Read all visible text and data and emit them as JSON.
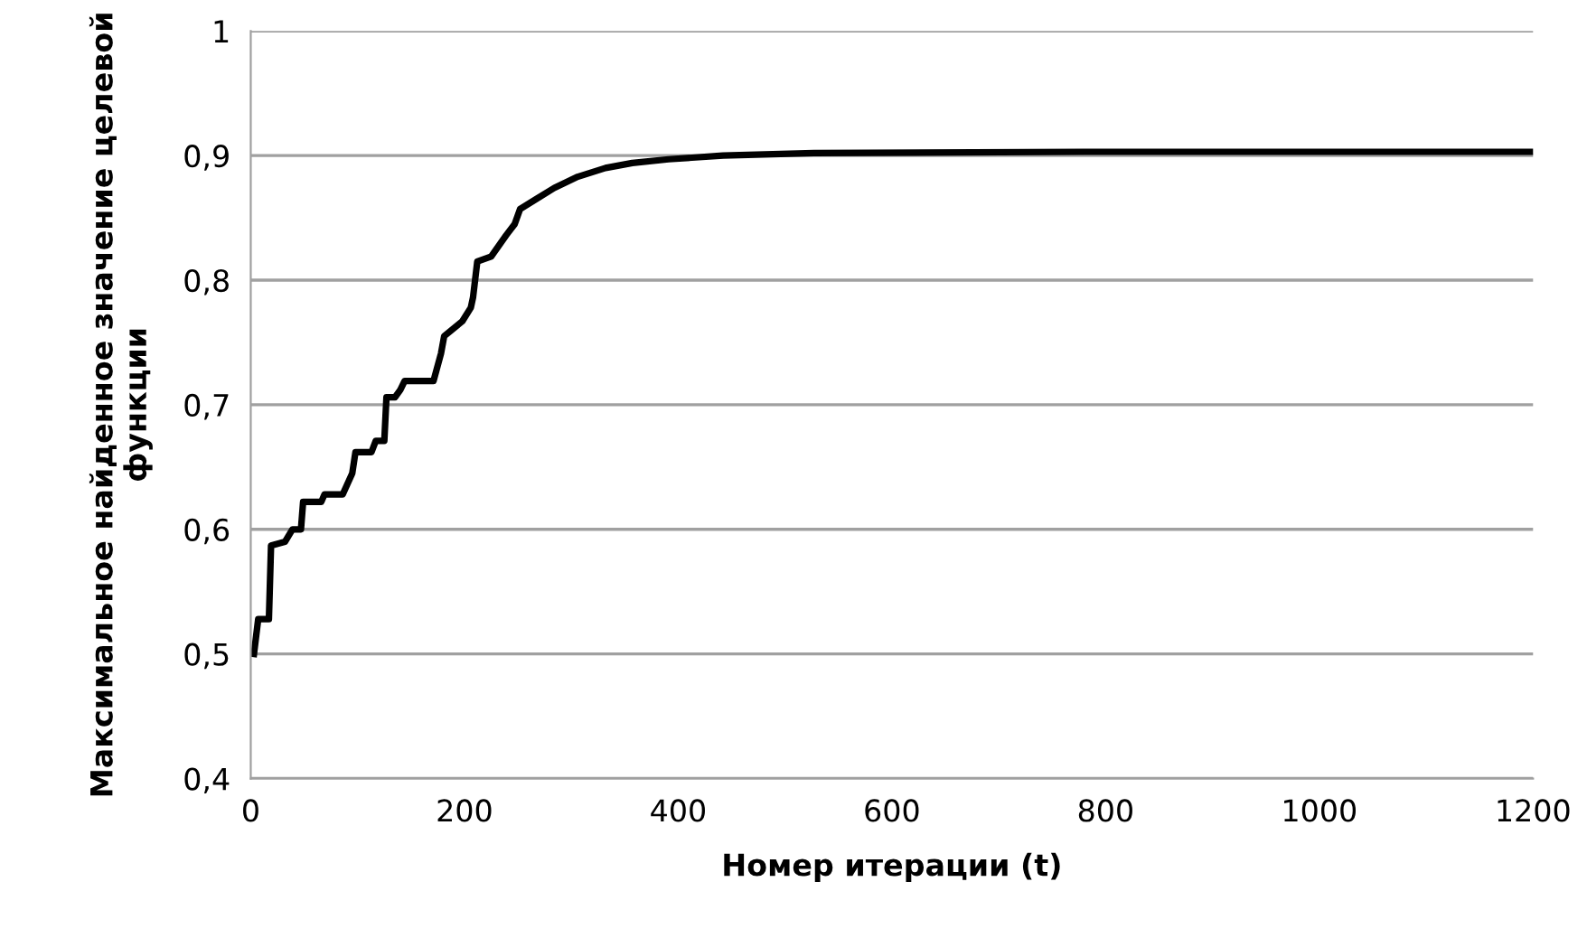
{
  "chart_data": {
    "type": "line",
    "xlabel": "Номер итерации (t)",
    "ylabel": "Максимальное найденное значение целевой функции",
    "xlim": [
      0,
      1200
    ],
    "xticks": [
      0,
      200,
      400,
      600,
      800,
      1000,
      1200
    ],
    "ylim": [
      0.4,
      1
    ],
    "yticks": [
      {
        "value": 0.4,
        "label": "0,4"
      },
      {
        "value": 0.5,
        "label": "0,5"
      },
      {
        "value": 0.6,
        "label": "0,6"
      },
      {
        "value": 0.7,
        "label": "0,7"
      },
      {
        "value": 0.8,
        "label": "0,8"
      },
      {
        "value": 0.9,
        "label": "0,9"
      },
      {
        "value": 1,
        "label": "1"
      }
    ],
    "grid": "y",
    "legend": false,
    "marker": "none",
    "line_style": "solid",
    "series": [
      {
        "color": "#000000",
        "x": [
          3,
          7,
          17,
          19,
          32,
          39,
          47,
          49,
          66,
          69,
          86,
          95,
          98,
          113,
          117,
          125,
          127,
          135,
          140,
          144,
          171,
          178,
          181,
          198,
          206,
          208,
          212,
          225,
          239,
          247,
          252,
          267,
          284,
          306,
          332,
          357,
          391,
          442,
          527,
          780,
          1200
        ],
        "values": [
          0.5,
          0.528,
          0.528,
          0.587,
          0.59,
          0.6,
          0.6,
          0.622,
          0.622,
          0.628,
          0.628,
          0.645,
          0.662,
          0.662,
          0.671,
          0.671,
          0.706,
          0.706,
          0.712,
          0.719,
          0.719,
          0.741,
          0.755,
          0.767,
          0.778,
          0.786,
          0.815,
          0.819,
          0.836,
          0.845,
          0.857,
          0.865,
          0.874,
          0.883,
          0.89,
          0.894,
          0.897,
          0.9,
          0.902,
          0.903,
          0.903
        ]
      }
    ]
  }
}
